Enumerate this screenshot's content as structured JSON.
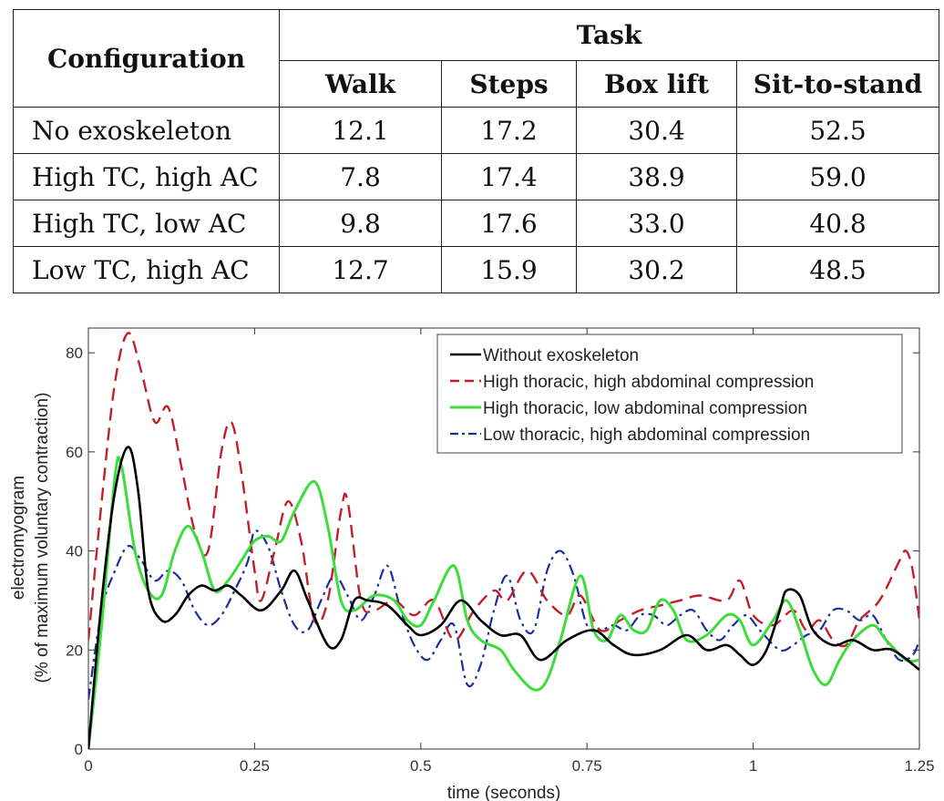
{
  "table": {
    "config_header": "Configuration",
    "task_header": "Task",
    "task_columns": [
      "Walk",
      "Steps",
      "Box lift",
      "Sit-to-stand"
    ],
    "rows": [
      {
        "config": "No exoskeleton",
        "values": [
          "12.1",
          "17.2",
          "30.4",
          "52.5"
        ]
      },
      {
        "config": "High TC, high AC",
        "values": [
          "7.8",
          "17.4",
          "38.9",
          "59.0"
        ]
      },
      {
        "config": "High TC, low AC",
        "values": [
          "9.8",
          "17.6",
          "33.0",
          "40.8"
        ]
      },
      {
        "config": "Low TC, high AC",
        "values": [
          "12.7",
          "15.9",
          "30.2",
          "48.5"
        ]
      }
    ]
  },
  "chart_data": {
    "type": "line",
    "xlabel": "time (seconds)",
    "ylabel_line1": "electromyogram",
    "ylabel_line2": "(% of maximum voluntary contraction)",
    "xlim": [
      0,
      1.25
    ],
    "ylim": [
      0,
      85
    ],
    "xticks": [
      0,
      0.25,
      0.5,
      0.75,
      1,
      1.25
    ],
    "xtick_labels": [
      "0",
      "0.25",
      "0.5",
      "0.75",
      "1",
      "1.25"
    ],
    "yticks": [
      0,
      20,
      40,
      60,
      80
    ],
    "ytick_labels": [
      "0",
      "20",
      "40",
      "60",
      "80"
    ],
    "legend_position": "top-right",
    "grid": false,
    "series": [
      {
        "name": "Without exoskeleton",
        "color": "#000000",
        "dash": "solid",
        "width": 2.6,
        "points": [
          [
            0,
            0
          ],
          [
            0.02,
            30
          ],
          [
            0.04,
            52
          ],
          [
            0.06,
            61
          ],
          [
            0.075,
            52
          ],
          [
            0.09,
            32
          ],
          [
            0.11,
            26
          ],
          [
            0.13,
            27
          ],
          [
            0.15,
            31
          ],
          [
            0.17,
            33
          ],
          [
            0.19,
            32
          ],
          [
            0.21,
            33
          ],
          [
            0.23,
            31
          ],
          [
            0.26,
            28
          ],
          [
            0.29,
            32
          ],
          [
            0.31,
            36
          ],
          [
            0.33,
            30
          ],
          [
            0.36,
            21
          ],
          [
            0.38,
            22
          ],
          [
            0.4,
            30
          ],
          [
            0.42,
            30
          ],
          [
            0.45,
            29
          ],
          [
            0.48,
            25
          ],
          [
            0.5,
            23
          ],
          [
            0.53,
            25
          ],
          [
            0.56,
            30
          ],
          [
            0.59,
            26
          ],
          [
            0.62,
            23
          ],
          [
            0.65,
            23
          ],
          [
            0.68,
            18
          ],
          [
            0.72,
            22
          ],
          [
            0.76,
            24
          ],
          [
            0.79,
            21
          ],
          [
            0.82,
            19
          ],
          [
            0.86,
            20
          ],
          [
            0.9,
            23
          ],
          [
            0.93,
            20
          ],
          [
            0.96,
            21
          ],
          [
            0.98,
            19
          ],
          [
            1.0,
            17
          ],
          [
            1.02,
            20
          ],
          [
            1.04,
            28
          ],
          [
            1.05,
            32
          ],
          [
            1.07,
            31
          ],
          [
            1.09,
            24
          ],
          [
            1.12,
            21
          ],
          [
            1.15,
            22
          ],
          [
            1.18,
            20
          ],
          [
            1.21,
            20
          ],
          [
            1.25,
            16
          ]
        ]
      },
      {
        "name": "High thoracic, high abdominal compression",
        "color": "#c0202a",
        "dash": "dash",
        "width": 2.4,
        "points": [
          [
            0,
            22
          ],
          [
            0.02,
            50
          ],
          [
            0.04,
            74
          ],
          [
            0.06,
            84
          ],
          [
            0.08,
            76
          ],
          [
            0.1,
            66
          ],
          [
            0.12,
            69
          ],
          [
            0.14,
            57
          ],
          [
            0.16,
            44
          ],
          [
            0.18,
            40
          ],
          [
            0.2,
            60
          ],
          [
            0.215,
            66
          ],
          [
            0.23,
            56
          ],
          [
            0.25,
            36
          ],
          [
            0.26,
            30
          ],
          [
            0.28,
            40
          ],
          [
            0.3,
            50
          ],
          [
            0.32,
            42
          ],
          [
            0.34,
            26
          ],
          [
            0.36,
            30
          ],
          [
            0.38,
            48
          ],
          [
            0.39,
            50
          ],
          [
            0.41,
            30
          ],
          [
            0.43,
            28
          ],
          [
            0.46,
            30
          ],
          [
            0.49,
            27
          ],
          [
            0.52,
            30
          ],
          [
            0.55,
            22
          ],
          [
            0.58,
            28
          ],
          [
            0.61,
            32
          ],
          [
            0.63,
            30
          ],
          [
            0.66,
            36
          ],
          [
            0.69,
            30
          ],
          [
            0.72,
            27
          ],
          [
            0.74,
            31
          ],
          [
            0.77,
            24
          ],
          [
            0.8,
            26
          ],
          [
            0.83,
            28
          ],
          [
            0.86,
            29
          ],
          [
            0.89,
            30
          ],
          [
            0.92,
            31
          ],
          [
            0.96,
            30
          ],
          [
            0.98,
            34
          ],
          [
            1.0,
            27
          ],
          [
            1.03,
            25
          ],
          [
            1.06,
            28
          ],
          [
            1.08,
            24
          ],
          [
            1.1,
            26
          ],
          [
            1.12,
            22
          ],
          [
            1.14,
            21
          ],
          [
            1.16,
            26
          ],
          [
            1.19,
            30
          ],
          [
            1.22,
            38
          ],
          [
            1.23,
            40
          ],
          [
            1.24,
            36
          ],
          [
            1.25,
            26
          ]
        ]
      },
      {
        "name": "High thoracic, low abdominal compression",
        "color": "#3ddc3d",
        "dash": "solid",
        "width": 3.0,
        "points": [
          [
            0,
            0
          ],
          [
            0.02,
            25
          ],
          [
            0.04,
            55
          ],
          [
            0.05,
            57
          ],
          [
            0.07,
            40
          ],
          [
            0.09,
            32
          ],
          [
            0.11,
            31
          ],
          [
            0.13,
            40
          ],
          [
            0.15,
            45
          ],
          [
            0.17,
            40
          ],
          [
            0.19,
            32
          ],
          [
            0.21,
            34
          ],
          [
            0.23,
            38
          ],
          [
            0.25,
            42
          ],
          [
            0.27,
            43
          ],
          [
            0.29,
            42
          ],
          [
            0.31,
            48
          ],
          [
            0.34,
            54
          ],
          [
            0.36,
            45
          ],
          [
            0.38,
            30
          ],
          [
            0.4,
            28
          ],
          [
            0.43,
            31
          ],
          [
            0.46,
            30
          ],
          [
            0.48,
            26
          ],
          [
            0.5,
            25
          ],
          [
            0.52,
            30
          ],
          [
            0.55,
            37
          ],
          [
            0.57,
            26
          ],
          [
            0.59,
            22
          ],
          [
            0.62,
            20
          ],
          [
            0.64,
            16
          ],
          [
            0.67,
            12
          ],
          [
            0.69,
            14
          ],
          [
            0.71,
            22
          ],
          [
            0.74,
            35
          ],
          [
            0.76,
            24
          ],
          [
            0.78,
            22
          ],
          [
            0.8,
            27
          ],
          [
            0.82,
            24
          ],
          [
            0.84,
            24
          ],
          [
            0.86,
            30
          ],
          [
            0.88,
            28
          ],
          [
            0.9,
            22
          ],
          [
            0.93,
            23
          ],
          [
            0.96,
            27
          ],
          [
            0.98,
            26
          ],
          [
            1.0,
            21
          ],
          [
            1.03,
            26
          ],
          [
            1.05,
            30
          ],
          [
            1.07,
            24
          ],
          [
            1.09,
            16
          ],
          [
            1.11,
            13
          ],
          [
            1.13,
            18
          ],
          [
            1.15,
            22
          ],
          [
            1.18,
            25
          ],
          [
            1.2,
            22
          ],
          [
            1.23,
            18
          ],
          [
            1.25,
            18
          ]
        ]
      },
      {
        "name": "Low thoracic, high abdominal compression",
        "color": "#1b2e9e",
        "dash": "dashdot",
        "width": 2.2,
        "points": [
          [
            0,
            10
          ],
          [
            0.02,
            28
          ],
          [
            0.04,
            36
          ],
          [
            0.06,
            41
          ],
          [
            0.08,
            38
          ],
          [
            0.1,
            34
          ],
          [
            0.12,
            36
          ],
          [
            0.14,
            34
          ],
          [
            0.16,
            28
          ],
          [
            0.18,
            25
          ],
          [
            0.2,
            27
          ],
          [
            0.22,
            32
          ],
          [
            0.24,
            38
          ],
          [
            0.25,
            44
          ],
          [
            0.27,
            41
          ],
          [
            0.29,
            32
          ],
          [
            0.31,
            25
          ],
          [
            0.33,
            24
          ],
          [
            0.35,
            30
          ],
          [
            0.37,
            35
          ],
          [
            0.39,
            31
          ],
          [
            0.41,
            26
          ],
          [
            0.43,
            31
          ],
          [
            0.45,
            37
          ],
          [
            0.47,
            28
          ],
          [
            0.49,
            21
          ],
          [
            0.51,
            18
          ],
          [
            0.53,
            22
          ],
          [
            0.55,
            25
          ],
          [
            0.57,
            13
          ],
          [
            0.59,
            17
          ],
          [
            0.61,
            28
          ],
          [
            0.63,
            35
          ],
          [
            0.65,
            26
          ],
          [
            0.67,
            24
          ],
          [
            0.69,
            36
          ],
          [
            0.71,
            40
          ],
          [
            0.73,
            35
          ],
          [
            0.75,
            25
          ],
          [
            0.77,
            24
          ],
          [
            0.79,
            25
          ],
          [
            0.81,
            24
          ],
          [
            0.83,
            27
          ],
          [
            0.85,
            27
          ],
          [
            0.87,
            25
          ],
          [
            0.89,
            27
          ],
          [
            0.91,
            28
          ],
          [
            0.93,
            24
          ],
          [
            0.95,
            22
          ],
          [
            0.97,
            25
          ],
          [
            0.99,
            27
          ],
          [
            1.01,
            24
          ],
          [
            1.04,
            20
          ],
          [
            1.06,
            21
          ],
          [
            1.08,
            23
          ],
          [
            1.1,
            24
          ],
          [
            1.12,
            28
          ],
          [
            1.14,
            28
          ],
          [
            1.16,
            26
          ],
          [
            1.18,
            27
          ],
          [
            1.2,
            22
          ],
          [
            1.22,
            18
          ],
          [
            1.24,
            19
          ],
          [
            1.25,
            22
          ]
        ]
      }
    ]
  }
}
